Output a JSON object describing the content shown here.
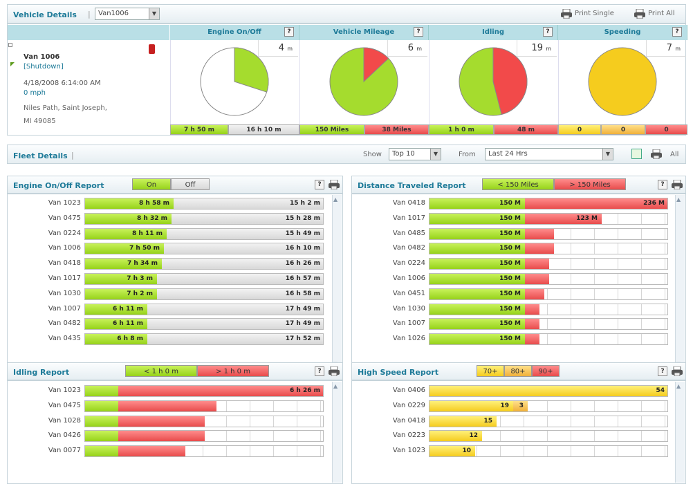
{
  "vehicle_details": {
    "title": "Vehicle Details",
    "selected_vehicle": "Van1006",
    "print_single": "Print Single",
    "print_all": "Print All",
    "vehicle": {
      "name": "Van 1006",
      "status": "[Shutdown]",
      "timestamp": "4/18/2008 6:14:00 AM",
      "speed": "0 mph",
      "address_line1": "Niles Path, Saint Joseph,",
      "address_line2": "MI 49085"
    },
    "panels": [
      {
        "title": "Engine On/Off",
        "count": "4",
        "unit": "m",
        "fraction": 0.3,
        "colors": [
          "#a5dc2e",
          "#ffffff"
        ],
        "footer": [
          {
            "text": "7 h 50 m",
            "color": "green",
            "share": 0.45
          },
          {
            "text": "16 h 10 m",
            "color": "gray",
            "share": 0.55
          }
        ]
      },
      {
        "title": "Vehicle Mileage",
        "count": "6",
        "unit": "m",
        "fraction": 0.13,
        "colors": [
          "#f24a4a",
          "#a5dc2e"
        ],
        "footer": [
          {
            "text": "150 Miles",
            "color": "green",
            "share": 0.5
          },
          {
            "text": "38 Miles",
            "color": "red",
            "share": 0.5
          }
        ]
      },
      {
        "title": "Idling",
        "count": "19",
        "unit": "m",
        "fraction": 0.46,
        "colors": [
          "#f24a4a",
          "#a5dc2e"
        ],
        "footer": [
          {
            "text": "1 h 0 m",
            "color": "green",
            "share": 0.5
          },
          {
            "text": "48 m",
            "color": "red",
            "share": 0.5
          }
        ]
      },
      {
        "title": "Speeding",
        "count": "7",
        "unit": "m",
        "fraction": 1.0,
        "colors": [
          "#f5cc1e",
          "#f5cc1e"
        ],
        "footer": [
          {
            "text": "0",
            "color": "yellow",
            "share": 0.33
          },
          {
            "text": "0",
            "color": "orange",
            "share": 0.34
          },
          {
            "text": "0",
            "color": "red",
            "share": 0.33
          }
        ]
      }
    ]
  },
  "fleet_details": {
    "title": "Fleet Details",
    "show_label": "Show",
    "show_value": "Top 10",
    "from_label": "From",
    "from_value": "Last 24 Hrs",
    "all_label": "All"
  },
  "engine_report": {
    "title": "Engine On/Off Report",
    "legend": [
      "On",
      "Off"
    ],
    "rows": [
      {
        "label": "Van 1023",
        "on": "8 h 58 m",
        "off": "15 h 2 m",
        "frac": 0.37
      },
      {
        "label": "Van 0475",
        "on": "8 h 32 m",
        "off": "15 h 28 m",
        "frac": 0.36
      },
      {
        "label": "Van 0224",
        "on": "8 h 11 m",
        "off": "15 h 49 m",
        "frac": 0.34
      },
      {
        "label": "Van 1006",
        "on": "7 h 50 m",
        "off": "16 h 10 m",
        "frac": 0.33
      },
      {
        "label": "Van 0418",
        "on": "7 h 34 m",
        "off": "16 h 26 m",
        "frac": 0.32
      },
      {
        "label": "Van 1017",
        "on": "7 h 3 m",
        "off": "16 h 57 m",
        "frac": 0.3
      },
      {
        "label": "Van 1030",
        "on": "7 h 2 m",
        "off": "16 h 58 m",
        "frac": 0.3
      },
      {
        "label": "Van 1007",
        "on": "6 h 11 m",
        "off": "17 h 49 m",
        "frac": 0.26
      },
      {
        "label": "Van 0482",
        "on": "6 h 11 m",
        "off": "17 h 49 m",
        "frac": 0.26
      },
      {
        "label": "Van 0435",
        "on": "6 h 8 m",
        "off": "17 h 52 m",
        "frac": 0.26
      }
    ]
  },
  "distance_report": {
    "title": "Distance Traveled Report",
    "legend": [
      "< 150 Miles",
      "> 150 Miles"
    ],
    "rows": [
      {
        "label": "Van 0418",
        "green": "150 M",
        "red": "236 M",
        "gfrac": 0.4,
        "rfrac": 0.6
      },
      {
        "label": "Van 1017",
        "green": "150 M",
        "red": "123 M",
        "gfrac": 0.4,
        "rfrac": 0.32
      },
      {
        "label": "Van 0485",
        "green": "150 M",
        "red": "",
        "gfrac": 0.4,
        "rfrac": 0.12
      },
      {
        "label": "Van 0482",
        "green": "150 M",
        "red": "",
        "gfrac": 0.4,
        "rfrac": 0.12
      },
      {
        "label": "Van 0224",
        "green": "150 M",
        "red": "",
        "gfrac": 0.4,
        "rfrac": 0.1
      },
      {
        "label": "Van 1006",
        "green": "150 M",
        "red": "",
        "gfrac": 0.4,
        "rfrac": 0.1
      },
      {
        "label": "Van 0451",
        "green": "150 M",
        "red": "",
        "gfrac": 0.4,
        "rfrac": 0.08
      },
      {
        "label": "Van 1030",
        "green": "150 M",
        "red": "",
        "gfrac": 0.4,
        "rfrac": 0.06
      },
      {
        "label": "Van 1007",
        "green": "150 M",
        "red": "",
        "gfrac": 0.4,
        "rfrac": 0.06
      },
      {
        "label": "Van 1026",
        "green": "150 M",
        "red": "",
        "gfrac": 0.4,
        "rfrac": 0.06
      }
    ]
  },
  "idling_report": {
    "title": "Idling Report",
    "legend": [
      "< 1 h 0 m",
      "> 1 h 0 m"
    ],
    "rows": [
      {
        "label": "Van 1023",
        "value": "6 h 26 m",
        "gfrac": 0.14,
        "rfrac": 0.86
      },
      {
        "label": "Van 0475",
        "value": "",
        "gfrac": 0.14,
        "rfrac": 0.41
      },
      {
        "label": "Van 1028",
        "value": "",
        "gfrac": 0.14,
        "rfrac": 0.36
      },
      {
        "label": "Van 0426",
        "value": "",
        "gfrac": 0.14,
        "rfrac": 0.36
      },
      {
        "label": "Van 0077",
        "value": "",
        "gfrac": 0.14,
        "rfrac": 0.28
      }
    ]
  },
  "speed_report": {
    "title": "High Speed Report",
    "legend": [
      "70+",
      "80+",
      "90+"
    ],
    "rows": [
      {
        "label": "Van 0406",
        "v1": "54",
        "v2": "",
        "f1": 1.0,
        "f2": 0
      },
      {
        "label": "Van 0229",
        "v1": "19",
        "v2": "3",
        "f1": 0.35,
        "f2": 0.06
      },
      {
        "label": "Van 0418",
        "v1": "15",
        "v2": "",
        "f1": 0.28,
        "f2": 0
      },
      {
        "label": "Van 0223",
        "v1": "12",
        "v2": "",
        "f1": 0.22,
        "f2": 0
      },
      {
        "label": "Van 1023",
        "v1": "10",
        "v2": "",
        "f1": 0.19,
        "f2": 0
      }
    ]
  }
}
